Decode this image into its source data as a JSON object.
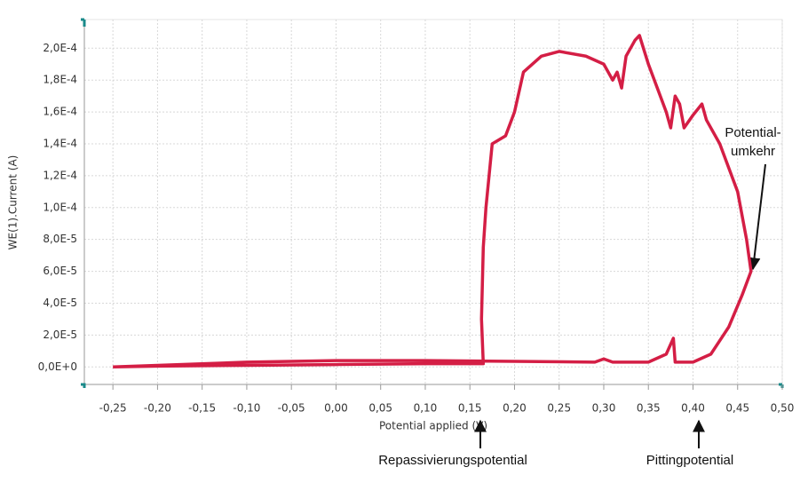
{
  "chart_data": {
    "type": "line",
    "x_label": "Potential applied (V)",
    "y_label": "WE(1).Current (A)",
    "xlim": [
      -0.282,
      0.5
    ],
    "ylim": [
      -1.1e-05,
      0.000218
    ],
    "xticks": [
      {
        "value": -0.25,
        "label": "-0,25"
      },
      {
        "value": -0.2,
        "label": "-0,20"
      },
      {
        "value": -0.15,
        "label": "-0,15"
      },
      {
        "value": -0.1,
        "label": "-0,10"
      },
      {
        "value": -0.05,
        "label": "-0,05"
      },
      {
        "value": 0,
        "label": "0,00"
      },
      {
        "value": 0.05,
        "label": "0,05"
      },
      {
        "value": 0.1,
        "label": "0,10"
      },
      {
        "value": 0.15,
        "label": "0,15"
      },
      {
        "value": 0.2,
        "label": "0,20"
      },
      {
        "value": 0.25,
        "label": "0,25"
      },
      {
        "value": 0.3,
        "label": "0,30"
      },
      {
        "value": 0.35,
        "label": "0,35"
      },
      {
        "value": 0.4,
        "label": "0,40"
      },
      {
        "value": 0.45,
        "label": "0,45"
      },
      {
        "value": 0.5,
        "label": "0,50"
      }
    ],
    "yticks": [
      {
        "value": 0,
        "label": "0,0E+0"
      },
      {
        "value": 2e-05,
        "label": "2,0E-5"
      },
      {
        "value": 4e-05,
        "label": "4,0E-5"
      },
      {
        "value": 6e-05,
        "label": "6,0E-5"
      },
      {
        "value": 8e-05,
        "label": "8,0E-5"
      },
      {
        "value": 0.0001,
        "label": "1,0E-4"
      },
      {
        "value": 0.00012,
        "label": "1,2E-4"
      },
      {
        "value": 0.00014,
        "label": "1,4E-4"
      },
      {
        "value": 0.00016,
        "label": "1,6E-4"
      },
      {
        "value": 0.00018,
        "label": "1,8E-4"
      },
      {
        "value": 0.0002,
        "label": "2,0E-4"
      }
    ],
    "grid": true,
    "x": [
      -0.25,
      -0.2,
      -0.1,
      0,
      0.1,
      0.2,
      0.29,
      0.3,
      0.31,
      0.35,
      0.37,
      0.378,
      0.38,
      0.4,
      0.42,
      0.44,
      0.455,
      0.465,
      0.46,
      0.45,
      0.43,
      0.415,
      0.41,
      0.4,
      0.39,
      0.385,
      0.38,
      0.375,
      0.37,
      0.36,
      0.35,
      0.34,
      0.335,
      0.33,
      0.325,
      0.32,
      0.315,
      0.31,
      0.3,
      0.28,
      0.25,
      0.23,
      0.21,
      0.2,
      0.19,
      0.175,
      0.168,
      0.165,
      0.163,
      0.165,
      0.1,
      0,
      -0.1,
      -0.2,
      -0.25
    ],
    "series": [
      {
        "color": "#d41e45",
        "values": [
          0,
          1e-06,
          3e-06,
          4e-06,
          4e-06,
          3.5e-06,
          3e-06,
          5e-06,
          3e-06,
          3e-06,
          8e-06,
          1.8e-05,
          3e-06,
          3e-06,
          8e-06,
          2.5e-05,
          4.5e-05,
          6e-05,
          8e-05,
          0.00011,
          0.00014,
          0.000155,
          0.000165,
          0.000158,
          0.00015,
          0.000165,
          0.00017,
          0.00015,
          0.00016,
          0.000175,
          0.00019,
          0.000208,
          0.000205,
          0.0002,
          0.000195,
          0.000175,
          0.000185,
          0.00018,
          0.00019,
          0.000195,
          0.000198,
          0.000195,
          0.000185,
          0.00016,
          0.000145,
          0.00014,
          0.0001,
          7.5e-05,
          3e-05,
          2e-06,
          2e-06,
          1.5e-06,
          1e-06,
          5e-07,
          0
        ]
      }
    ],
    "annotations": [
      [
        "Potential-",
        "umkehr"
      ],
      "Repassivierungspotential",
      "Pittingpotential"
    ]
  }
}
